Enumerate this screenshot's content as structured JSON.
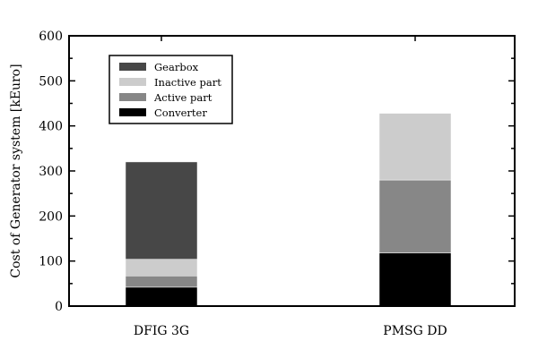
{
  "chart_data": {
    "type": "bar",
    "stacked": true,
    "categories": [
      "DFIG 3G",
      "PMSG DD"
    ],
    "ylabel": "Cost of Generator system [kEuro]",
    "xlabel": "",
    "ylim": [
      0,
      600
    ],
    "yticks": [
      0,
      100,
      200,
      300,
      400,
      500,
      600
    ],
    "grid": false,
    "legend_position": "top-left",
    "series": [
      {
        "name": "Converter",
        "values": [
          42,
          118
        ],
        "color": "#000000"
      },
      {
        "name": "Active part",
        "values": [
          25,
          162
        ],
        "color": "#878787"
      },
      {
        "name": "Inactive part",
        "values": [
          37,
          148
        ],
        "color": "#cccccc"
      },
      {
        "name": "Gearbox",
        "values": [
          216,
          0
        ],
        "color": "#474747"
      }
    ],
    "legend_order": [
      "Gearbox",
      "Inactive part",
      "Active part",
      "Converter"
    ]
  }
}
